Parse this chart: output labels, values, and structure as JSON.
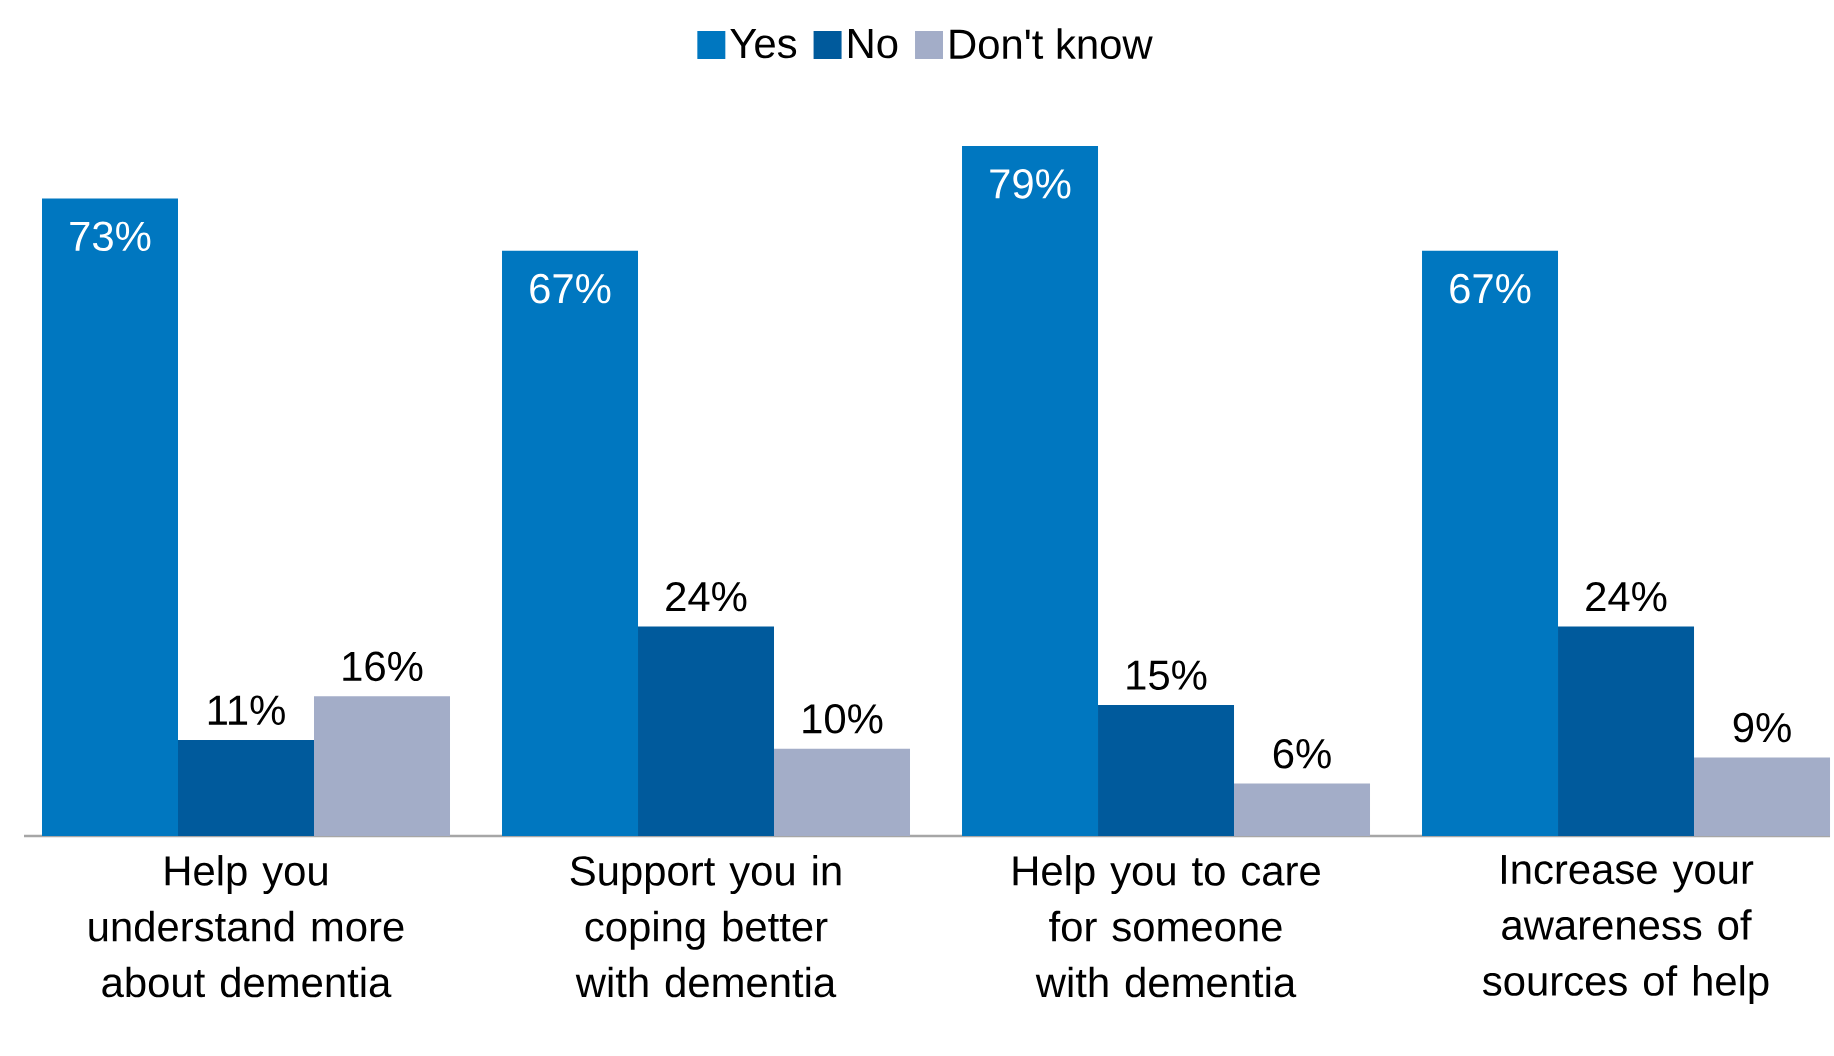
{
  "chart_data": {
    "type": "bar",
    "categories": [
      "Help you understand more about dementia",
      "Support you in coping better with dementia",
      "Help you to care for someone with dementia",
      "Increase your awareness of sources of help"
    ],
    "series": [
      {
        "name": "Yes",
        "color": "#0077c0",
        "values": [
          73,
          67,
          79,
          67
        ],
        "value_labels": [
          "73%",
          "67%",
          "79%",
          "67%"
        ]
      },
      {
        "name": "No",
        "color": "#005a9c",
        "values": [
          11,
          24,
          15,
          24
        ],
        "value_labels": [
          "11%",
          "24%",
          "15%",
          "24%"
        ]
      },
      {
        "name": "Don't know",
        "color": "#a3adc8",
        "values": [
          16,
          10,
          6,
          9
        ],
        "value_labels": [
          "16%",
          "10%",
          "6%",
          "9%"
        ]
      }
    ],
    "legend": "top"
  }
}
